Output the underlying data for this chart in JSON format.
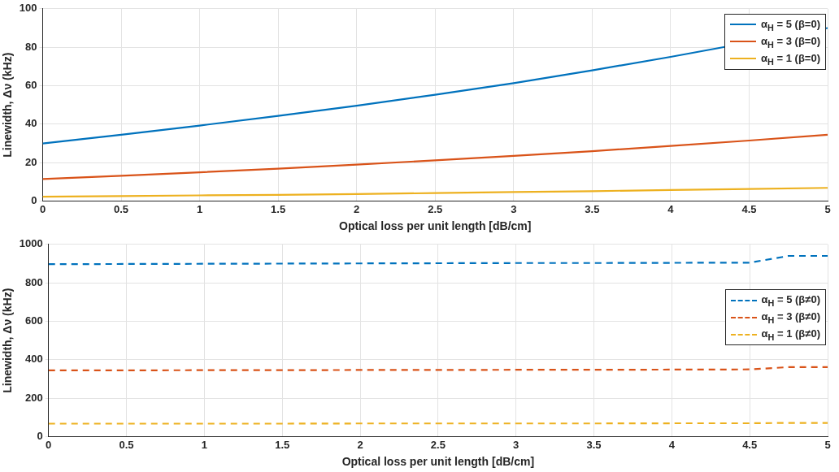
{
  "chart_data": [
    {
      "type": "line",
      "xlabel": "Optical loss per unit length [dB/cm]",
      "ylabel": "Linewidth, Δν (kHz)",
      "x": [
        0,
        0.5,
        1,
        1.5,
        2,
        2.5,
        3,
        3.5,
        4,
        4.5,
        5
      ],
      "xlim": [
        0,
        5
      ],
      "xticks": [
        0,
        0.5,
        1,
        1.5,
        2,
        2.5,
        3,
        3.5,
        4,
        4.5,
        5
      ],
      "ylim": [
        0,
        100
      ],
      "yticks": [
        0,
        20,
        40,
        60,
        80,
        100
      ],
      "grid": true,
      "legend": "top right",
      "line_style": "solid",
      "series": [
        {
          "name": "α$_{H}$ = 5 (β=0)",
          "color": "#0072bd",
          "values": [
            30,
            34.5,
            39.3,
            44.3,
            49.6,
            55.3,
            61.3,
            68,
            75,
            null,
            90
          ]
        },
        {
          "name": "α$_{H}$ = 3 (β=0)",
          "color": "#d95319",
          "values": [
            11.5,
            13.2,
            15,
            16.9,
            19,
            21.2,
            23.5,
            26,
            28.7,
            31.5,
            34.5
          ]
        },
        {
          "name": "α$_{H}$ = 1 (β=0)",
          "color": "#edb120",
          "values": [
            2.3,
            2.6,
            3,
            3.3,
            3.7,
            4.2,
            4.7,
            5.2,
            5.8,
            6.3,
            6.9
          ]
        }
      ]
    },
    {
      "type": "line",
      "xlabel": "Optical loss per unit length [dB/cm]",
      "ylabel": "Linewidth, Δν (kHz)",
      "x": [
        0,
        0.5,
        1,
        1.5,
        2,
        2.5,
        3,
        3.5,
        4,
        4.5,
        4.75,
        5
      ],
      "xlim": [
        0,
        5
      ],
      "xticks": [
        0,
        0.5,
        1,
        1.5,
        2,
        2.5,
        3,
        3.5,
        4,
        4.5,
        5
      ],
      "ylim": [
        0,
        1000
      ],
      "yticks": [
        0,
        200,
        400,
        600,
        800,
        1000
      ],
      "grid": true,
      "legend": "right",
      "line_style": "dashed",
      "series": [
        {
          "name": "α$_{H}$ = 5 (β≠0)",
          "color": "#0072bd",
          "values": [
            897,
            898,
            899,
            900,
            901,
            902,
            903,
            903,
            904,
            905,
            940,
            940
          ]
        },
        {
          "name": "α$_{H}$ = 3 (β≠0)",
          "color": "#d95319",
          "values": [
            345,
            345,
            346,
            346,
            347,
            347,
            348,
            348,
            349,
            350,
            362,
            362
          ]
        },
        {
          "name": "α$_{H}$ = 1 (β≠0)",
          "color": "#edb120",
          "values": [
            68,
            68,
            68,
            68,
            69,
            69,
            69,
            69,
            70,
            70,
            72,
            72
          ]
        }
      ]
    }
  ]
}
